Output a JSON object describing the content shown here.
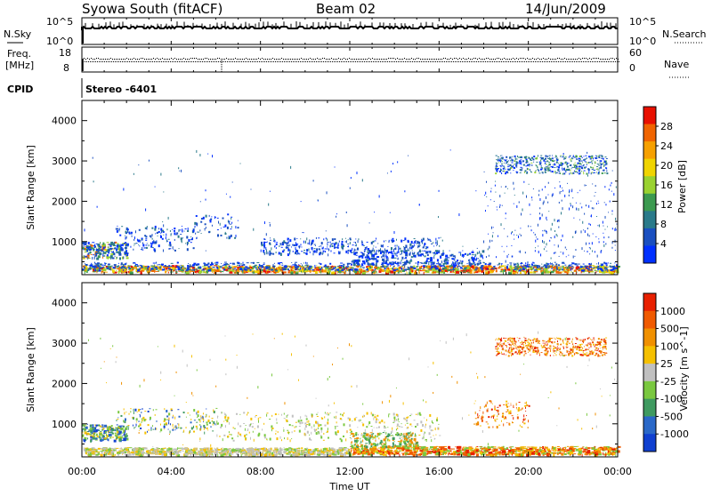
{
  "header": {
    "station": "Syowa South (fitACF)",
    "beam": "Beam 02",
    "date": "14/Jun/2009"
  },
  "top_panels": {
    "nsky_label": "N.Sky",
    "nsky_ticks": [
      "10^5",
      "10^0"
    ],
    "nsearch_label": "N.Search",
    "nsearch_ticks": [
      "10^5",
      "10^0"
    ],
    "freq_label": "Freq.",
    "freq_unit": "[MHz]",
    "freq_ticks": [
      "18",
      "8"
    ],
    "nave_label": "Nave",
    "nave_ticks": [
      "60",
      "0"
    ],
    "cpid_label": "CPID",
    "cpid_value": "Stereo -6401"
  },
  "chart_data": [
    {
      "type": "heatmap",
      "name": "power",
      "ylabel": "Slant Range [km]",
      "xlabel": "",
      "y_ticks": [
        "4000",
        "3000",
        "2000",
        "1000"
      ],
      "y_tick_values": [
        4000,
        3000,
        2000,
        1000
      ],
      "ylim": [
        180,
        4500
      ],
      "xlim": [
        0,
        24
      ],
      "colorbar": {
        "label": "Power [dB]",
        "ticks": [
          "28",
          "24",
          "20",
          "16",
          "12",
          "8",
          "4"
        ],
        "range": [
          0,
          30
        ],
        "colors": [
          "#0030ff",
          "#1a4fc0",
          "#2a7a8a",
          "#3c9a50",
          "#9ad230",
          "#f0d400",
          "#f6a000",
          "#f06400",
          "#e81000"
        ]
      }
    },
    {
      "type": "heatmap",
      "name": "velocity",
      "ylabel": "Slant Range [km]",
      "xlabel": "Time UT",
      "y_ticks": [
        "4000",
        "3000",
        "2000",
        "1000"
      ],
      "y_tick_values": [
        4000,
        3000,
        2000,
        1000
      ],
      "ylim": [
        180,
        4500
      ],
      "xlim": [
        0,
        24
      ],
      "x_ticks": [
        "00:00",
        "04:00",
        "08:00",
        "12:00",
        "16:00",
        "20:00",
        "00:00"
      ],
      "colorbar": {
        "label": "Velocity [m s^-1]",
        "ticks": [
          "1000",
          "500",
          "100",
          "25",
          "-25",
          "-100",
          "-500",
          "-1000"
        ],
        "colors": [
          "#1040d0",
          "#2a68c8",
          "#3f9a60",
          "#7ac840",
          "#c0c0c0",
          "#f5c000",
          "#f09000",
          "#f05a00",
          "#e82000"
        ]
      }
    }
  ]
}
